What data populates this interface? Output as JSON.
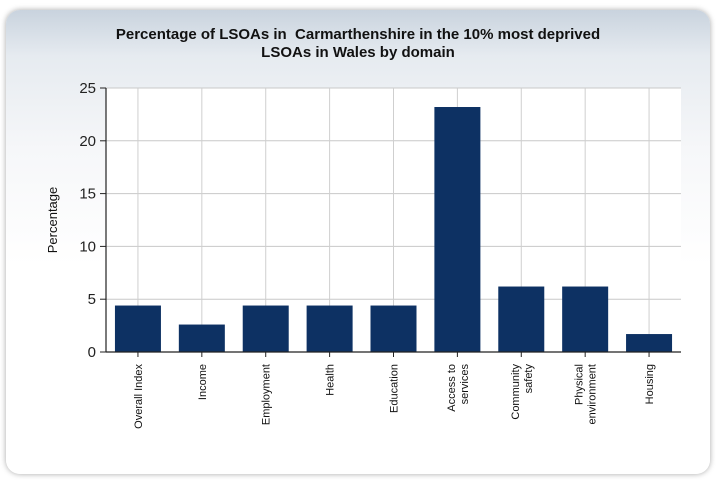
{
  "chart_data": {
    "type": "bar",
    "title_lines": [
      "Percentage of LSOAs in  Carmarthenshire in the 10% most deprived",
      "LSOAs in Wales by domain"
    ],
    "xlabel": "",
    "ylabel": "Percentage",
    "ylim": [
      0,
      25
    ],
    "yticks": [
      0,
      5,
      10,
      15,
      20,
      25
    ],
    "grid": true,
    "categories": [
      [
        "Overall Index"
      ],
      [
        "Income"
      ],
      [
        "Employment"
      ],
      [
        "Health"
      ],
      [
        "Education"
      ],
      [
        "Access to",
        "services"
      ],
      [
        "Community",
        "safety"
      ],
      [
        "Physical",
        "environment"
      ],
      [
        "Housing"
      ]
    ],
    "values": [
      4.4,
      2.6,
      4.4,
      4.4,
      4.4,
      23.2,
      6.2,
      6.2,
      1.7
    ],
    "bar_color": "#0d3163"
  }
}
